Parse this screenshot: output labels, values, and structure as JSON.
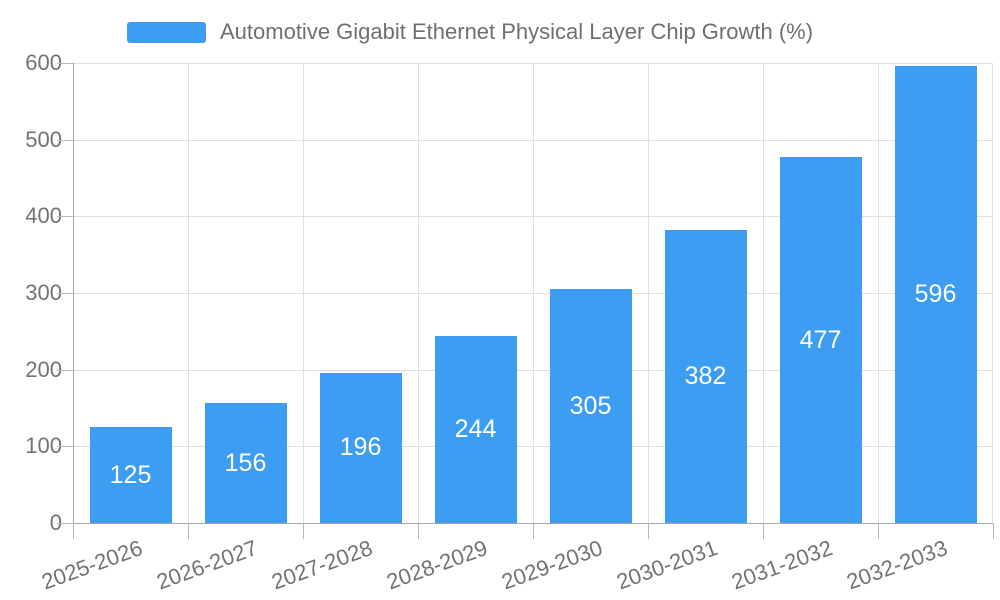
{
  "legend": {
    "label": "Automotive Gigabit Ethernet Physical Layer Chip Growth (%)"
  },
  "chart_data": {
    "type": "bar",
    "title": "Automotive Gigabit Ethernet Physical Layer Chip Growth (%)",
    "categories": [
      "2025-2026",
      "2026-2027",
      "2027-2028",
      "2028-2029",
      "2029-2030",
      "2030-2031",
      "2031-2032",
      "2032-2033"
    ],
    "values": [
      125,
      156,
      196,
      244,
      305,
      382,
      477,
      596
    ],
    "value_labels": [
      "125",
      "156",
      "196",
      "244",
      "305",
      "382",
      "477",
      "596"
    ],
    "xlabel": "",
    "ylabel": "",
    "ylim": [
      0,
      600
    ],
    "yticks": [
      0,
      100,
      200,
      300,
      400,
      500,
      600
    ],
    "grid": true,
    "legend_position": "top",
    "colors": {
      "bar": "#3d9df3",
      "value_label": "#ffffff",
      "axis_text": "#737373",
      "grid_line": "#e0e0e0",
      "axis_line": "#a6a6a6",
      "tick": "#b8b8b8"
    }
  }
}
